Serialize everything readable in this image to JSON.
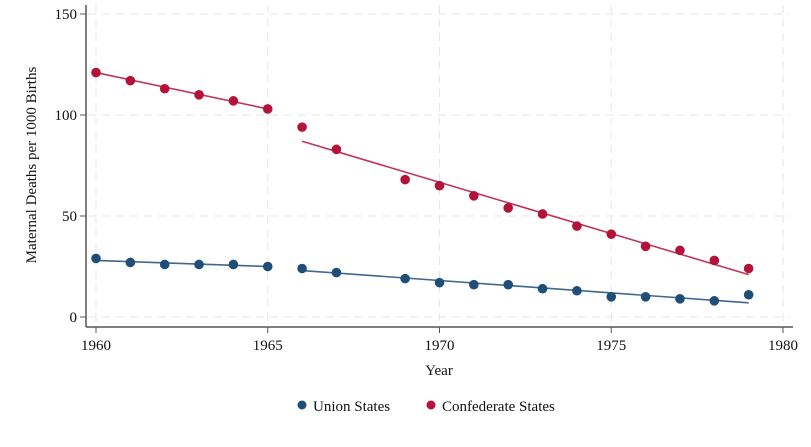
{
  "chart_data": {
    "type": "scatter",
    "xlabel": "Year",
    "ylabel": "Maternal Deaths per 1000 Births",
    "xlim": [
      1960,
      1980
    ],
    "ylim": [
      0,
      150
    ],
    "xticks": [
      1960,
      1965,
      1970,
      1975,
      1980
    ],
    "yticks": [
      0,
      50,
      100,
      150
    ],
    "grid": true,
    "legend_position": "bottom",
    "series": [
      {
        "name": "Union States",
        "color": "#1f4e79",
        "x": [
          1960,
          1961,
          1962,
          1963,
          1964,
          1965,
          1966,
          1967,
          1969,
          1970,
          1971,
          1972,
          1973,
          1974,
          1975,
          1976,
          1977,
          1978,
          1979
        ],
        "y": [
          29,
          27,
          26,
          26,
          26,
          25,
          24,
          22,
          19,
          17,
          16,
          16,
          14,
          13,
          10,
          10,
          9,
          8,
          11
        ],
        "fit_lines": [
          {
            "x": [
              1960,
              1965
            ],
            "y": [
              28,
              25
            ]
          },
          {
            "x": [
              1966,
              1979
            ],
            "y": [
              23,
              7
            ]
          }
        ]
      },
      {
        "name": "Confederate States",
        "color": "#b5123a",
        "x": [
          1960,
          1961,
          1962,
          1963,
          1964,
          1965,
          1966,
          1967,
          1969,
          1970,
          1971,
          1972,
          1973,
          1974,
          1975,
          1976,
          1977,
          1978,
          1979
        ],
        "y": [
          121,
          117,
          113,
          110,
          107,
          103,
          94,
          83,
          68,
          65,
          60,
          54,
          51,
          45,
          41,
          35,
          33,
          28,
          24
        ],
        "fit_lines": [
          {
            "x": [
              1960,
              1965
            ],
            "y": [
              121,
              103
            ]
          },
          {
            "x": [
              1966,
              1979
            ],
            "y": [
              87,
              21
            ]
          }
        ]
      }
    ]
  }
}
